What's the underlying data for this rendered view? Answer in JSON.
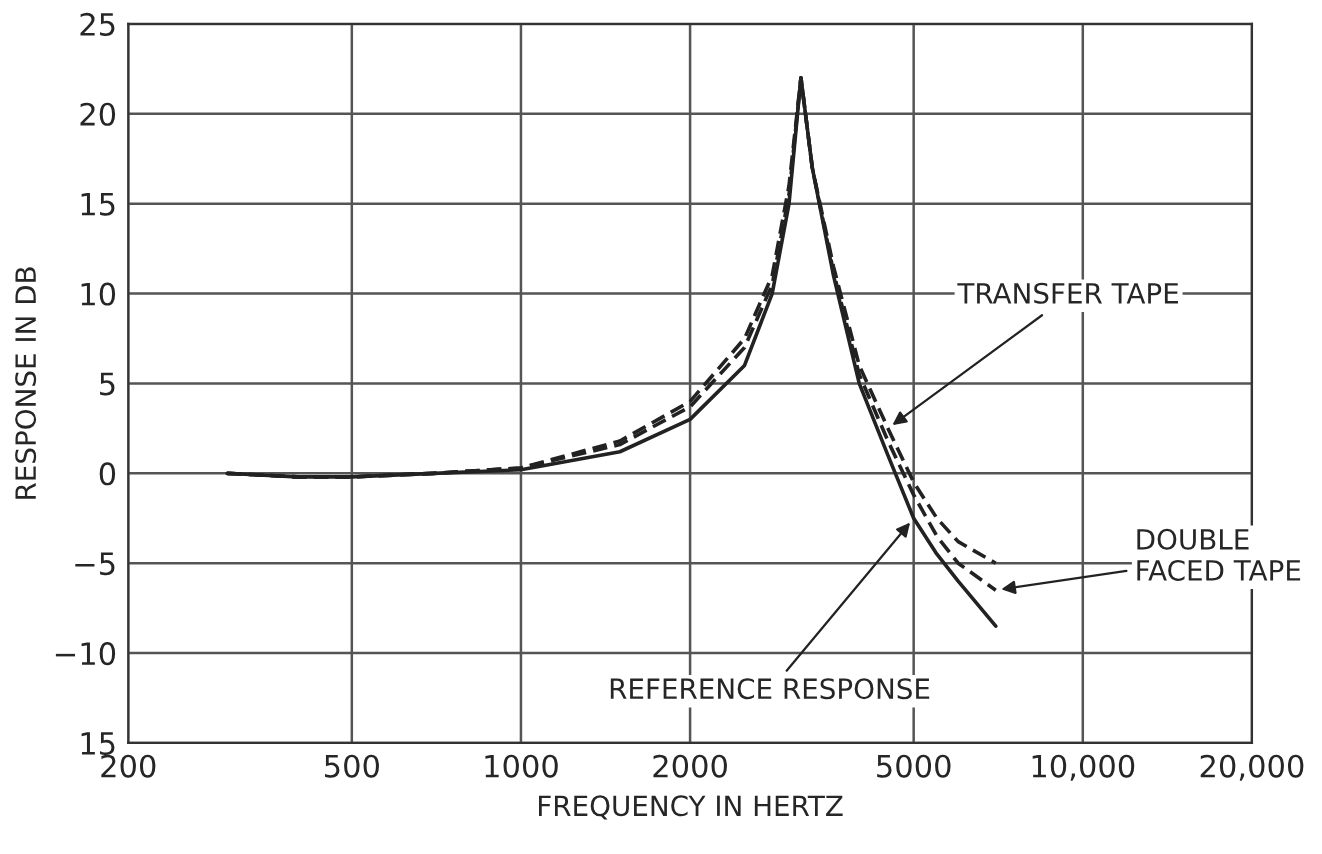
{
  "chart_data": {
    "type": "line",
    "xlabel": "FREQUENCY IN HERTZ",
    "ylabel": "RESPONSE IN DB",
    "log": "x",
    "grid": true,
    "xlim": [
      200,
      20000
    ],
    "xticks": [
      200,
      500,
      1000,
      2000,
      5000,
      {
        "value": 10000,
        "label": "10,000"
      },
      {
        "value": 20000,
        "label": "20,000"
      }
    ],
    "ylim": [
      -15,
      25
    ],
    "yticks": [
      {
        "value": -15,
        "label": "15"
      },
      {
        "value": -10,
        "label": "−10"
      },
      {
        "value": -5,
        "label": "−5"
      },
      0,
      5,
      10,
      15,
      20,
      25
    ],
    "series": [
      {
        "color": "#222222",
        "line_style": "solid",
        "x": [
          300,
          400,
          500,
          700,
          1000,
          1500,
          2000,
          2500,
          2800,
          3000,
          3150,
          3300,
          3600,
          4000,
          4500,
          5000,
          5500,
          6000,
          7000
        ],
        "values": [
          0,
          -0.2,
          -0.2,
          0,
          0.2,
          1.2,
          3,
          6,
          10,
          15,
          22,
          17,
          11,
          5,
          1,
          -2.5,
          -4.5,
          -6,
          -8.5
        ]
      },
      {
        "color": "#222222",
        "line_style": "dashed",
        "x": [
          300,
          400,
          500,
          700,
          1000,
          1500,
          2000,
          2500,
          2800,
          3000,
          3150,
          3300,
          3600,
          4000,
          4500,
          5000,
          5500,
          6000,
          7000
        ],
        "values": [
          0,
          -0.2,
          -0.2,
          0,
          0.3,
          1.8,
          4,
          7.5,
          11,
          16,
          22,
          17,
          11.5,
          6,
          2.5,
          -0.5,
          -2.5,
          -3.8,
          -5
        ]
      },
      {
        "color": "#222222",
        "line_style": "dashed",
        "x": [
          300,
          400,
          500,
          700,
          1000,
          1500,
          2000,
          2500,
          2800,
          3000,
          3150,
          3300,
          3600,
          4000,
          4500,
          5000,
          5500,
          6000,
          7000
        ],
        "values": [
          0,
          -0.2,
          -0.2,
          0,
          0.3,
          1.6,
          3.7,
          7,
          10.5,
          15.5,
          22,
          17,
          11.2,
          5.5,
          1.8,
          -1.2,
          -3.5,
          -5,
          -6.5
        ]
      }
    ],
    "annotations": [
      {
        "text": "TRANSFER TAPE",
        "x": 4500,
        "y": 2.5
      },
      {
        "text": "DOUBLE FACED TAPE",
        "x": 7000,
        "y": -6.5
      },
      {
        "text": "REFERENCE RESPONSE",
        "x": 5000,
        "y": -2.5
      }
    ]
  }
}
